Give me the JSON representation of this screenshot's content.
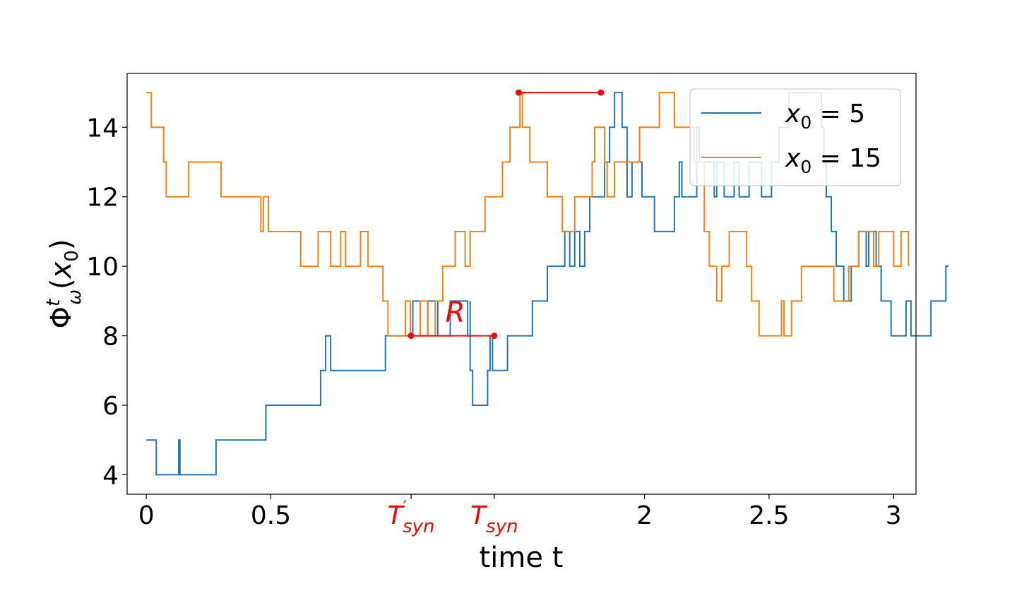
{
  "chart_data": {
    "type": "line",
    "step": true,
    "xlabel": "time t",
    "ylabel": "Φ^t_ω(x_0)",
    "xlim": [
      -0.077,
      3.09
    ],
    "ylim": [
      3.44,
      15.55
    ],
    "grid": false,
    "legend_position": "top-right",
    "x_ticks": [
      {
        "value": 0,
        "label": "0",
        "highlight": false
      },
      {
        "value": 0.5,
        "label": "0.5",
        "highlight": false
      },
      {
        "value": 1.063,
        "label": "T'",
        "sub": "syn",
        "highlight": true
      },
      {
        "value": 1.397,
        "label": "T",
        "sub": "syn",
        "highlight": true
      },
      {
        "value": 2,
        "label": "2",
        "highlight": false
      },
      {
        "value": 2.5,
        "label": "2.5",
        "highlight": false
      },
      {
        "value": 3,
        "label": "3",
        "highlight": false
      }
    ],
    "y_ticks": [
      4,
      6,
      8,
      10,
      12,
      14
    ],
    "series": [
      {
        "name": "x_0 = 5",
        "legend_base": "x",
        "legend_sub": "0",
        "legend_rest": " = 5",
        "color": "#1f77b4",
        "points": [
          [
            0,
            5
          ],
          [
            0.04,
            4
          ],
          [
            0.13,
            5
          ],
          [
            0.135,
            4
          ],
          [
            0.28,
            5
          ],
          [
            0.48,
            6
          ],
          [
            0.7,
            7
          ],
          [
            0.72,
            8
          ],
          [
            0.74,
            7
          ],
          [
            0.96,
            8
          ],
          [
            1.07,
            9
          ],
          [
            1.1,
            8
          ],
          [
            1.13,
            9
          ],
          [
            1.17,
            8
          ],
          [
            1.22,
            9
          ],
          [
            1.29,
            8
          ],
          [
            1.3,
            9
          ],
          [
            1.3,
            7
          ],
          [
            1.31,
            6
          ],
          [
            1.37,
            7
          ],
          [
            1.38,
            8
          ],
          [
            1.39,
            7
          ],
          [
            1.45,
            8
          ],
          [
            1.55,
            9
          ],
          [
            1.61,
            10
          ],
          [
            1.68,
            11
          ],
          [
            1.7,
            10
          ],
          [
            1.72,
            11
          ],
          [
            1.74,
            10
          ],
          [
            1.76,
            11
          ],
          [
            1.78,
            12
          ],
          [
            1.84,
            13
          ],
          [
            1.86,
            14
          ],
          [
            1.88,
            15
          ],
          [
            1.91,
            14
          ],
          [
            1.93,
            12
          ],
          [
            1.95,
            13
          ],
          [
            1.99,
            12
          ],
          [
            2.04,
            11
          ],
          [
            2.12,
            12
          ],
          [
            2.14,
            13
          ],
          [
            2.15,
            12
          ],
          [
            2.21,
            14
          ],
          [
            2.22,
            13
          ],
          [
            2.28,
            12
          ],
          [
            2.29,
            13
          ],
          [
            2.32,
            12
          ],
          [
            2.36,
            13
          ],
          [
            2.38,
            12
          ],
          [
            2.42,
            13
          ],
          [
            2.47,
            12
          ],
          [
            2.51,
            13
          ],
          [
            2.54,
            14
          ],
          [
            2.58,
            15
          ],
          [
            2.71,
            14
          ],
          [
            2.72,
            13
          ],
          [
            2.73,
            12
          ],
          [
            2.75,
            11
          ],
          [
            2.77,
            10
          ],
          [
            2.8,
            9
          ],
          [
            2.83,
            10
          ],
          [
            2.86,
            11
          ],
          [
            2.89,
            10
          ],
          [
            2.9,
            11
          ],
          [
            2.93,
            10
          ],
          [
            2.95,
            9
          ],
          [
            2.99,
            8
          ],
          [
            3.05,
            9
          ],
          [
            3.07,
            8
          ],
          [
            3.15,
            9
          ],
          [
            3.21,
            10
          ],
          [
            3.22,
            10
          ]
        ]
      },
      {
        "name": "x_0 = 15",
        "legend_base": "x",
        "legend_sub": "0",
        "legend_rest": " = 15",
        "color": "#ff7f0e",
        "points": [
          [
            0,
            15
          ],
          [
            0.02,
            14
          ],
          [
            0.07,
            13
          ],
          [
            0.08,
            12
          ],
          [
            0.17,
            13
          ],
          [
            0.3,
            12
          ],
          [
            0.46,
            11
          ],
          [
            0.47,
            12
          ],
          [
            0.49,
            11
          ],
          [
            0.62,
            10
          ],
          [
            0.69,
            11
          ],
          [
            0.74,
            10
          ],
          [
            0.78,
            11
          ],
          [
            0.8,
            10
          ],
          [
            0.86,
            11
          ],
          [
            0.89,
            10
          ],
          [
            0.95,
            9
          ],
          [
            0.97,
            8
          ],
          [
            1.04,
            9
          ],
          [
            1.06,
            8
          ],
          [
            1.1,
            9
          ],
          [
            1.13,
            8
          ],
          [
            1.16,
            9
          ],
          [
            1.19,
            10
          ],
          [
            1.24,
            11
          ],
          [
            1.28,
            10
          ],
          [
            1.3,
            11
          ],
          [
            1.36,
            12
          ],
          [
            1.43,
            13
          ],
          [
            1.46,
            14
          ],
          [
            1.5,
            15
          ],
          [
            1.51,
            14
          ],
          [
            1.54,
            13
          ],
          [
            1.61,
            12
          ],
          [
            1.67,
            11
          ],
          [
            1.72,
            12
          ],
          [
            1.79,
            13
          ],
          [
            1.8,
            14
          ],
          [
            1.84,
            13
          ],
          [
            1.85,
            12
          ],
          [
            1.88,
            13
          ],
          [
            1.98,
            14
          ],
          [
            2.06,
            15
          ],
          [
            2.12,
            14
          ],
          [
            2.2,
            13
          ],
          [
            2.24,
            11
          ],
          [
            2.26,
            10
          ],
          [
            2.29,
            9
          ],
          [
            2.31,
            10
          ],
          [
            2.34,
            11
          ],
          [
            2.41,
            10
          ],
          [
            2.43,
            9
          ],
          [
            2.46,
            8
          ],
          [
            2.52,
            8
          ],
          [
            2.55,
            9
          ],
          [
            2.56,
            8
          ],
          [
            2.59,
            9
          ],
          [
            2.63,
            10
          ],
          [
            2.69,
            10
          ],
          [
            2.76,
            9
          ],
          [
            2.82,
            10
          ],
          [
            2.86,
            11
          ],
          [
            2.92,
            10
          ],
          [
            2.94,
            11
          ],
          [
            3.0,
            10
          ],
          [
            3.03,
            11
          ],
          [
            3.06,
            10
          ]
        ]
      }
    ],
    "annotations": [
      {
        "type": "segment",
        "x1": 1.063,
        "x2": 1.397,
        "y": 8,
        "color": "#ff0000",
        "label": "R",
        "label_x": 1.24,
        "label_y": 8.4
      },
      {
        "type": "segment",
        "x1": 1.495,
        "x2": 1.825,
        "y": 15,
        "color": "#ff0000",
        "label": ""
      }
    ]
  }
}
